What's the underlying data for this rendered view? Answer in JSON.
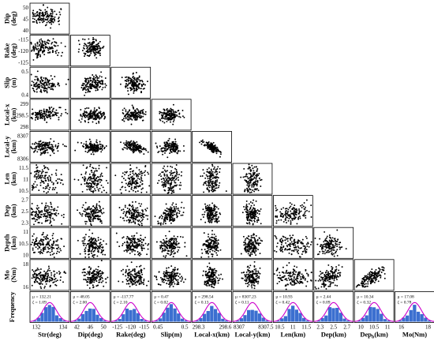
{
  "chart_data": {
    "type": "scatter",
    "layout": "lower-triangular scatterplot matrix with marginal histograms",
    "variables": [
      {
        "key": "Str",
        "row_label": "",
        "col_label": "Str(deg)",
        "range": [
          130.5,
          135.5
        ],
        "ticks": [
          "132",
          "134"
        ]
      },
      {
        "key": "Dip",
        "row_label": [
          "Dip",
          "(deg)"
        ],
        "col_label": "Dip(deg)",
        "range": [
          40,
          54
        ],
        "ticks": [
          "42",
          "46",
          "50"
        ],
        "row_ticks": [
          "50",
          "45",
          "40"
        ]
      },
      {
        "key": "Rake",
        "row_label": [
          "Rake",
          "(deg)"
        ],
        "col_label": "Rake(deg)",
        "range": [
          -126,
          -112
        ],
        "ticks": [
          "-125",
          "-120",
          "-115"
        ],
        "row_ticks": [
          "-115",
          "-120",
          "-125"
        ]
      },
      {
        "key": "Slip",
        "row_label": [
          "Slip",
          "(m)"
        ],
        "col_label": "Slip(m)",
        "range": [
          0.4,
          0.55
        ],
        "ticks": [
          "0.45",
          "0.5"
        ],
        "row_ticks": [
          "0.5",
          "0.4"
        ]
      },
      {
        "key": "Local-x",
        "row_label": [
          "Local-x",
          "(km)"
        ],
        "col_label": "Local-x(km)",
        "range": [
          297.9,
          299.2
        ],
        "ticks": [
          "298.3",
          "298.6"
        ],
        "row_ticks": [
          "299",
          "298.5",
          "298"
        ]
      },
      {
        "key": "Local-y",
        "row_label": [
          "Local-y",
          "(km)"
        ],
        "col_label": "Local-y(km)",
        "range": [
          8306.7,
          8307.8
        ],
        "ticks": [
          "8307",
          "8307.5"
        ],
        "row_ticks": [
          "8307",
          "8306"
        ]
      },
      {
        "key": "Len",
        "row_label": [
          "Len",
          "(km)"
        ],
        "col_label": "Len(km)",
        "range": [
          10.2,
          11.8
        ],
        "ticks": [
          "10.5",
          "11",
          "11.5"
        ],
        "row_ticks": [
          "11.5",
          "11",
          "10.5"
        ]
      },
      {
        "key": "Dep",
        "row_label": [
          "Dep",
          "(km)"
        ],
        "col_label": "Dep(km)",
        "range": [
          2.2,
          2.8
        ],
        "ticks": [
          "2.3",
          "2.5",
          "2.7"
        ],
        "row_ticks": [
          "2.7",
          "2.5",
          "2.3"
        ]
      },
      {
        "key": "Depth",
        "row_label": [
          "Depth",
          "(km)"
        ],
        "col_label": "Dep",
        "col_label_sub": "b",
        "col_label_suffix": "(km)",
        "range": [
          9.5,
          11.5
        ],
        "ticks": [
          "10",
          "10.5",
          "11"
        ],
        "row_ticks": [
          "11",
          "10.5",
          "10"
        ]
      },
      {
        "key": "Mo",
        "row_label": [
          "Mo",
          "(Nm)"
        ],
        "col_label": "Mo(Nm)",
        "range": [
          15,
          20
        ],
        "ticks": [
          "16",
          "18"
        ],
        "row_ticks": [
          "18",
          "16"
        ]
      }
    ],
    "frequency_row_label": "Frequency",
    "correlations": [
      {
        "row": "Local-y",
        "col": "Local-x",
        "rho": -0.75
      },
      {
        "row": "Local-y",
        "col": "Rake",
        "rho": -0.45
      },
      {
        "row": "Slip",
        "col": "Dip",
        "rho": 0.3
      },
      {
        "row": "Slip",
        "col": "Rake",
        "rho": -0.2
      },
      {
        "row": "Depth",
        "col": "Slip",
        "rho": 0.15
      },
      {
        "row": "Dep",
        "col": "Slip",
        "rho": 0.45
      },
      {
        "row": "Dep",
        "col": "Len",
        "rho": 0.3
      },
      {
        "row": "Mo",
        "col": "Dep",
        "rho": 0.45
      },
      {
        "row": "Mo",
        "col": "Depth",
        "rho": 0.75
      },
      {
        "row": "Local-x",
        "col": "Str",
        "rho": 0.35
      }
    ],
    "marginals": [
      {
        "var": "Str",
        "mu": "132.21",
        "zeta": "1.09"
      },
      {
        "var": "Dip",
        "mu": "48.05",
        "zeta": "2.00"
      },
      {
        "var": "Rake",
        "mu": "-117.77",
        "zeta": "2.10"
      },
      {
        "var": "Slip",
        "mu": "0.47",
        "zeta": "0.02"
      },
      {
        "var": "Local-x",
        "mu": "298.54",
        "zeta": "0.13"
      },
      {
        "var": "Local-y",
        "mu": "8307.23",
        "zeta": "0.11"
      },
      {
        "var": "Len",
        "mu": "10.93",
        "zeta": "0.42"
      },
      {
        "var": "Dep",
        "mu": "2.44",
        "zeta": "0.09"
      },
      {
        "var": "Depth",
        "mu": "10.34",
        "zeta": "0.32"
      },
      {
        "var": "Mo",
        "mu": "17.08",
        "zeta": "0.78"
      }
    ],
    "stat_mu_prefix": "μ = ",
    "stat_zeta_prefix": "ζ = ",
    "point_color": "#000000",
    "histogram_color": "#3b6fd0",
    "pdf_curve_color": "#cc00cc",
    "grid": false,
    "samples_per_panel": 150
  }
}
